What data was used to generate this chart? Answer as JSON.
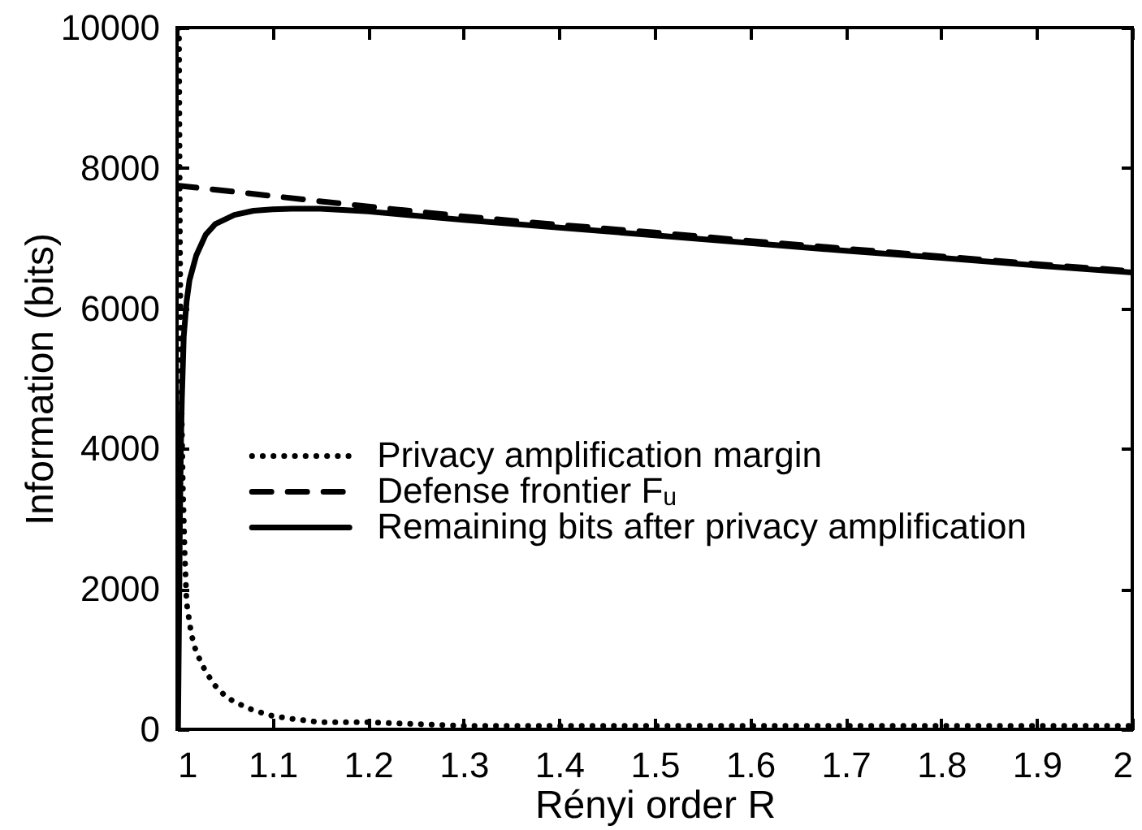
{
  "chart_data": {
    "type": "line",
    "xlabel": "Rényi order R",
    "ylabel": "Information (bits)",
    "xlim": [
      1,
      2
    ],
    "xticks": [
      1,
      1.1,
      1.2,
      1.3,
      1.4,
      1.5,
      1.6,
      1.7,
      1.8,
      1.9,
      2
    ],
    "ylim": [
      0,
      10000
    ],
    "yticks": [
      0,
      2000,
      4000,
      6000,
      8000,
      10000
    ],
    "legend": "left",
    "series": [
      {
        "name": "Privacy amplification margin",
        "color": "#000000",
        "line_style": "dotted",
        "x": [
          1.002,
          1.003,
          1.004,
          1.006,
          1.008,
          1.01,
          1.015,
          1.02,
          1.03,
          1.04,
          1.05,
          1.06,
          1.08,
          1.1,
          1.12,
          1.15,
          1.2,
          1.3,
          1.4,
          1.5,
          1.6,
          1.7,
          1.8,
          1.9,
          2
        ],
        "values": [
          10000,
          7000,
          5200,
          3500,
          2500,
          1800,
          1350,
          1100,
          820,
          620,
          480,
          390,
          270,
          190,
          150,
          100,
          100,
          50,
          50,
          50,
          50,
          50,
          50,
          50,
          50
        ]
      },
      {
        "name": "Defense frontier Fᵤ",
        "color": "#000000",
        "line_style": "dashed",
        "x": [
          1,
          1.1,
          1.2,
          1.3,
          1.4,
          1.5,
          1.6,
          1.7,
          1.8,
          1.9,
          2
        ],
        "values": [
          7750,
          7600,
          7450,
          7310,
          7190,
          7080,
          6960,
          6850,
          6740,
          6630,
          6530
        ]
      },
      {
        "name": "Remaining bits after privacy amplification",
        "color": "#000000",
        "line_style": "solid",
        "x": [
          1.001,
          1.002,
          1.003,
          1.004,
          1.005,
          1.007,
          1.01,
          1.013,
          1.02,
          1.03,
          1.04,
          1.06,
          1.08,
          1.1,
          1.12,
          1.15,
          1.2,
          1.3,
          1.4,
          1.5,
          1.6,
          1.7,
          1.8,
          1.9,
          2
        ],
        "values": [
          0,
          1500,
          3000,
          4000,
          4700,
          5600,
          6100,
          6400,
          6750,
          7050,
          7200,
          7330,
          7390,
          7410,
          7420,
          7420,
          7380,
          7260,
          7150,
          7040,
          6930,
          6820,
          6720,
          6610,
          6510
        ]
      }
    ]
  }
}
